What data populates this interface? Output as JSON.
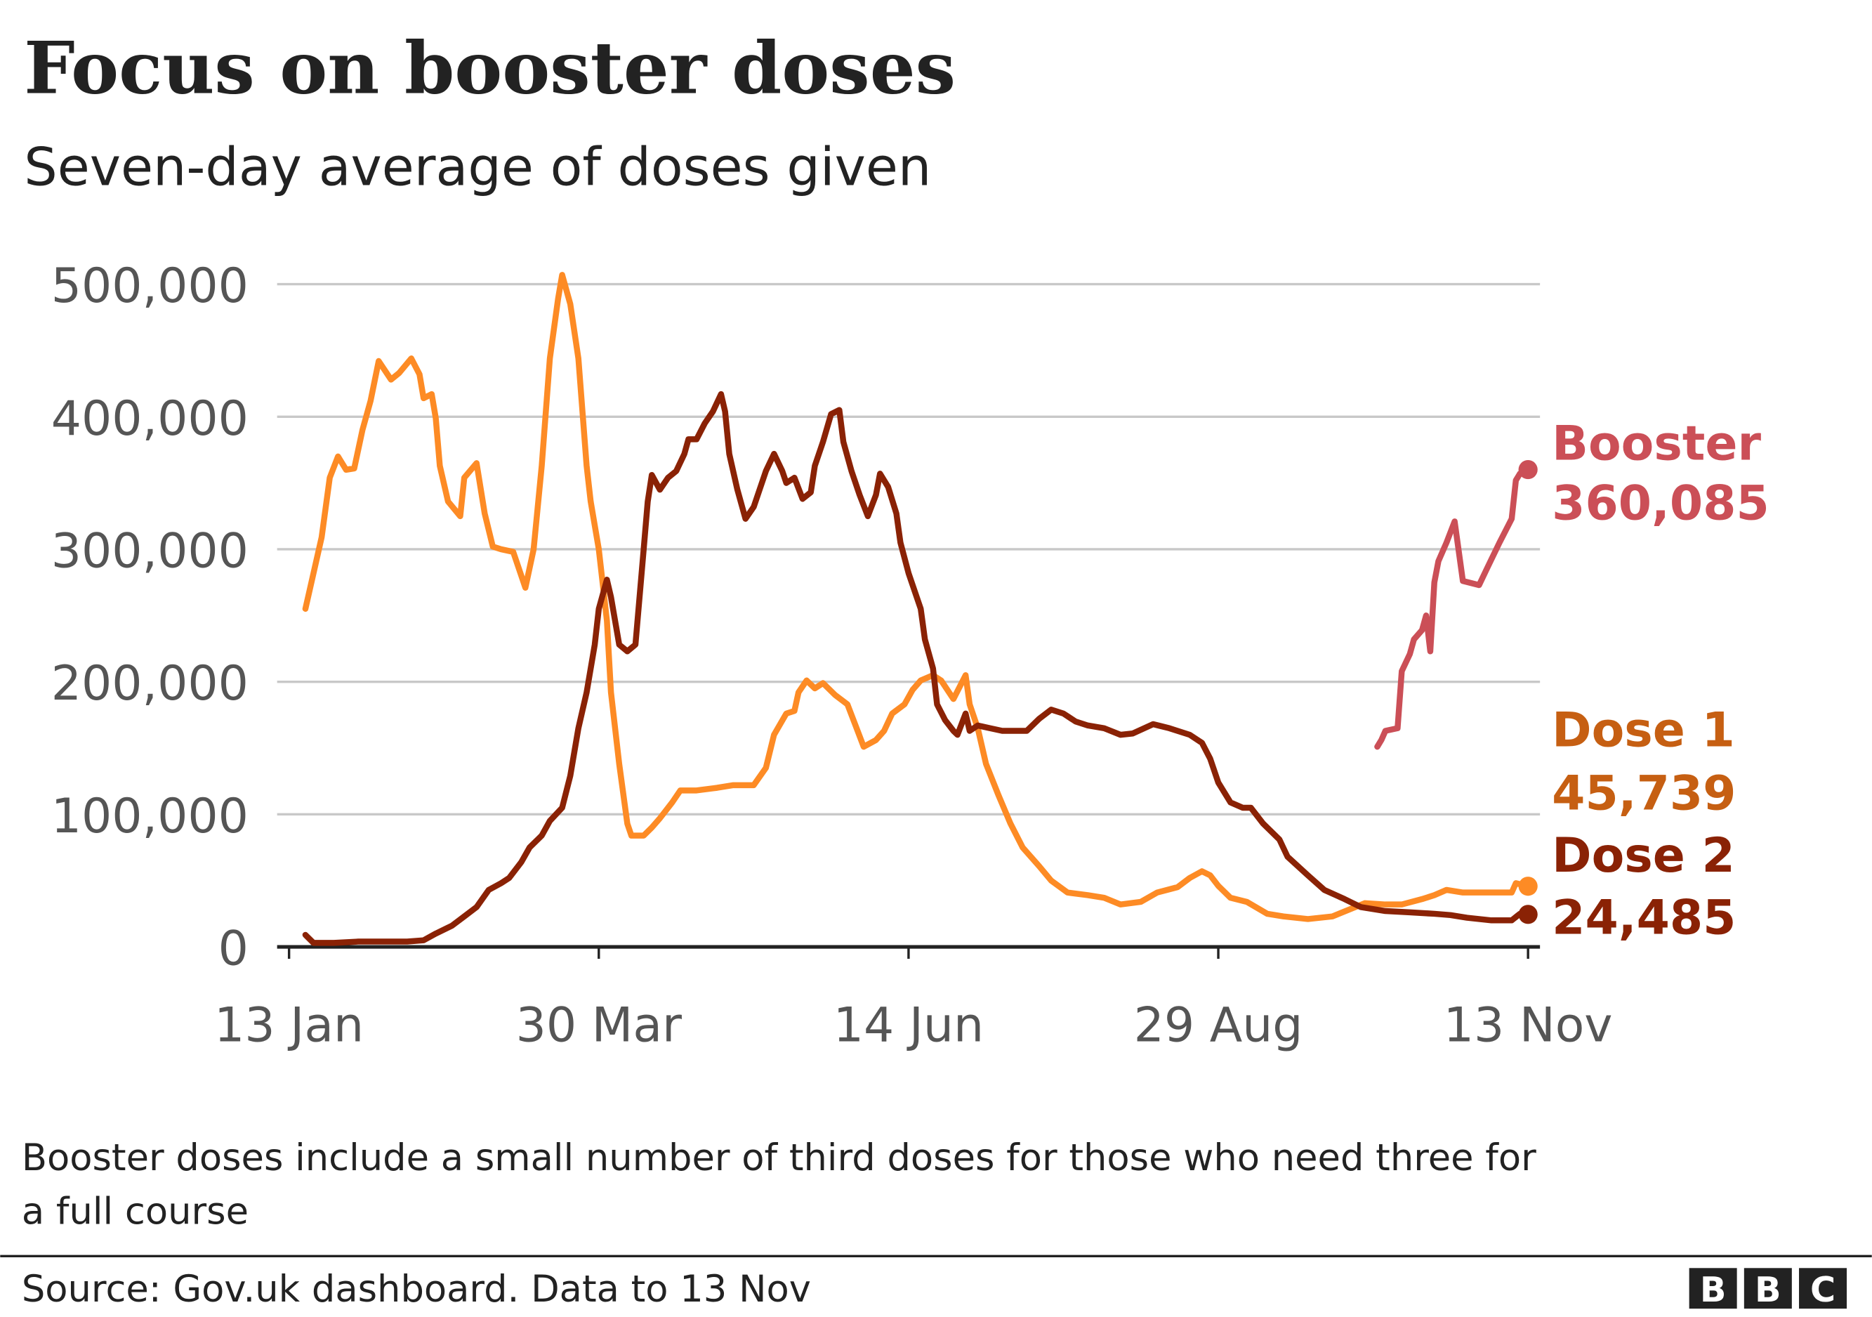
{
  "title": "Focus on booster doses",
  "subtitle": "Seven-day average of doses given",
  "footnote_line1": "Booster doses include a small number of third doses for those who need three for",
  "footnote_line2": "a full course",
  "source": "Source: Gov.uk dashboard. Data to 13 Nov",
  "logo": "BBC",
  "chart_data": {
    "type": "line",
    "title": "Focus on booster doses",
    "subtitle": "Seven-day average of doses given",
    "ylim": [
      0,
      500000
    ],
    "yticks": [
      0,
      100000,
      200000,
      300000,
      400000,
      500000
    ],
    "ytick_labels": [
      "0",
      "100,000",
      "200,000",
      "300,000",
      "400,000",
      "500,000"
    ],
    "xticks": [
      "13 Jan",
      "30 Mar",
      "14 Jun",
      "29 Aug",
      "13 Nov"
    ],
    "grid": "horizontal",
    "legend": "end-of-line labels, right",
    "series": [
      {
        "name": "Dose 1",
        "end_label": "45,739",
        "color": "#fd8b25",
        "label_color": "#c65f12",
        "points": [
          [
            "17 Jan",
            255000
          ],
          [
            "19 Jan",
            282000
          ],
          [
            "21 Jan",
            309000
          ],
          [
            "23 Jan",
            354000
          ],
          [
            "25 Jan",
            370000
          ],
          [
            "27 Jan",
            360000
          ],
          [
            "29 Jan",
            361000
          ],
          [
            "31 Jan",
            390000
          ],
          [
            "2 Feb",
            412000
          ],
          [
            "4 Feb",
            442000
          ],
          [
            "7 Feb",
            428000
          ],
          [
            "9 Feb",
            433000
          ],
          [
            "12 Feb",
            444000
          ],
          [
            "14 Feb",
            432000
          ],
          [
            "15 Feb",
            414000
          ],
          [
            "17 Feb",
            417000
          ],
          [
            "18 Feb",
            399000
          ],
          [
            "19 Feb",
            363000
          ],
          [
            "21 Feb",
            336000
          ],
          [
            "24 Feb",
            325000
          ],
          [
            "25 Feb",
            354000
          ],
          [
            "28 Feb",
            365000
          ],
          [
            "2 Mar",
            327000
          ],
          [
            "4 Mar",
            302000
          ],
          [
            "6 Mar",
            300000
          ],
          [
            "9 Mar",
            298000
          ],
          [
            "12 Mar",
            271000
          ],
          [
            "14 Mar",
            300000
          ],
          [
            "16 Mar",
            363000
          ],
          [
            "18 Mar",
            444000
          ],
          [
            "20 Mar",
            489000
          ],
          [
            "21 Mar",
            507000
          ],
          [
            "23 Mar",
            485000
          ],
          [
            "25 Mar",
            444000
          ],
          [
            "27 Mar",
            363000
          ],
          [
            "28 Mar",
            336000
          ],
          [
            "30 Mar",
            300000
          ],
          [
            "1 Apr",
            246000
          ],
          [
            "2 Apr",
            192000
          ],
          [
            "4 Apr",
            138000
          ],
          [
            "6 Apr",
            93000
          ],
          [
            "7 Apr",
            84000
          ],
          [
            "10 Apr",
            84000
          ],
          [
            "12 Apr",
            90000
          ],
          [
            "14 Apr",
            97000
          ],
          [
            "17 Apr",
            109000
          ],
          [
            "19 Apr",
            118000
          ],
          [
            "23 Apr",
            118000
          ],
          [
            "28 Apr",
            120000
          ],
          [
            "2 May",
            122000
          ],
          [
            "7 May",
            122000
          ],
          [
            "10 May",
            135000
          ],
          [
            "12 May",
            160000
          ],
          [
            "15 May",
            176000
          ],
          [
            "17 May",
            178000
          ],
          [
            "18 May",
            192000
          ],
          [
            "20 May",
            201000
          ],
          [
            "22 May",
            195000
          ],
          [
            "24 May",
            199000
          ],
          [
            "27 May",
            190000
          ],
          [
            "30 May",
            183000
          ],
          [
            "1 Jun",
            167000
          ],
          [
            "3 Jun",
            151000
          ],
          [
            "6 Jun",
            156000
          ],
          [
            "8 Jun",
            163000
          ],
          [
            "10 Jun",
            176000
          ],
          [
            "13 Jun",
            183000
          ],
          [
            "15 Jun",
            194000
          ],
          [
            "17 Jun",
            201000
          ],
          [
            "20 Jun",
            205000
          ],
          [
            "22 Jun",
            201000
          ],
          [
            "25 Jun",
            187000
          ],
          [
            "28 Jun",
            205000
          ],
          [
            "29 Jun",
            183000
          ],
          [
            "1 Jul",
            165000
          ],
          [
            "3 Jul",
            138000
          ],
          [
            "6 Jul",
            115000
          ],
          [
            "9 Jul",
            93000
          ],
          [
            "12 Jul",
            75000
          ],
          [
            "16 Jul",
            61000
          ],
          [
            "19 Jul",
            50000
          ],
          [
            "23 Jul",
            41000
          ],
          [
            "28 Jul",
            39000
          ],
          [
            "1 Aug",
            37000
          ],
          [
            "5 Aug",
            32000
          ],
          [
            "10 Aug",
            34000
          ],
          [
            "14 Aug",
            41000
          ],
          [
            "19 Aug",
            45000
          ],
          [
            "22 Aug",
            52000
          ],
          [
            "25 Aug",
            57000
          ],
          [
            "27 Aug",
            54000
          ],
          [
            "29 Aug",
            46000
          ],
          [
            "1 Sep",
            37000
          ],
          [
            "5 Sep",
            34000
          ],
          [
            "10 Sep",
            25000
          ],
          [
            "14 Sep",
            23000
          ],
          [
            "20 Sep",
            21000
          ],
          [
            "26 Sep",
            23000
          ],
          [
            "30 Sep",
            28000
          ],
          [
            "4 Oct",
            33000
          ],
          [
            "9 Oct",
            32000
          ],
          [
            "13 Oct",
            32000
          ],
          [
            "18 Oct",
            36000
          ],
          [
            "21 Oct",
            39000
          ],
          [
            "24 Oct",
            43000
          ],
          [
            "28 Oct",
            41000
          ],
          [
            "1 Nov",
            41000
          ],
          [
            "7 Nov",
            41000
          ],
          [
            "9 Nov",
            41000
          ],
          [
            "10 Nov",
            48000
          ],
          [
            "13 Nov",
            45739
          ]
        ]
      },
      {
        "name": "Dose 2",
        "end_label": "24,485",
        "color": "#8a2205",
        "label_color": "#8a2205",
        "points": [
          [
            "17 Jan",
            9000
          ],
          [
            "19 Jan",
            3000
          ],
          [
            "24 Jan",
            3000
          ],
          [
            "30 Jan",
            4000
          ],
          [
            "5 Feb",
            4000
          ],
          [
            "11 Feb",
            4000
          ],
          [
            "15 Feb",
            5000
          ],
          [
            "18 Feb",
            10000
          ],
          [
            "22 Feb",
            16000
          ],
          [
            "25 Feb",
            23000
          ],
          [
            "28 Feb",
            30000
          ],
          [
            "3 Mar",
            43000
          ],
          [
            "6 Mar",
            48000
          ],
          [
            "8 Mar",
            52000
          ],
          [
            "11 Mar",
            64000
          ],
          [
            "13 Mar",
            75000
          ],
          [
            "16 Mar",
            84000
          ],
          [
            "18 Mar",
            95000
          ],
          [
            "21 Mar",
            105000
          ],
          [
            "23 Mar",
            129000
          ],
          [
            "25 Mar",
            165000
          ],
          [
            "27 Mar",
            192000
          ],
          [
            "29 Mar",
            228000
          ],
          [
            "30 Mar",
            255000
          ],
          [
            "1 Apr",
            277000
          ],
          [
            "2 Apr",
            264000
          ],
          [
            "4 Apr",
            228000
          ],
          [
            "6 Apr",
            223000
          ],
          [
            "8 Apr",
            228000
          ],
          [
            "10 Apr",
            300000
          ],
          [
            "11 Apr",
            336000
          ],
          [
            "12 Apr",
            356000
          ],
          [
            "14 Apr",
            345000
          ],
          [
            "16 Apr",
            354000
          ],
          [
            "18 Apr",
            359000
          ],
          [
            "20 Apr",
            372000
          ],
          [
            "21 Apr",
            383000
          ],
          [
            "23 Apr",
            383000
          ],
          [
            "25 Apr",
            395000
          ],
          [
            "27 Apr",
            404000
          ],
          [
            "29 Apr",
            417000
          ],
          [
            "30 Apr",
            404000
          ],
          [
            "1 May",
            372000
          ],
          [
            "3 May",
            345000
          ],
          [
            "5 May",
            323000
          ],
          [
            "7 May",
            332000
          ],
          [
            "8 May",
            341000
          ],
          [
            "10 May",
            359000
          ],
          [
            "12 May",
            372000
          ],
          [
            "14 May",
            359000
          ],
          [
            "15 May",
            350000
          ],
          [
            "17 May",
            354000
          ],
          [
            "19 May",
            338000
          ],
          [
            "21 May",
            343000
          ],
          [
            "22 May",
            363000
          ],
          [
            "24 May",
            381000
          ],
          [
            "26 May",
            402000
          ],
          [
            "28 May",
            405000
          ],
          [
            "29 May",
            381000
          ],
          [
            "31 May",
            359000
          ],
          [
            "2 Jun",
            341000
          ],
          [
            "4 Jun",
            325000
          ],
          [
            "6 Jun",
            341000
          ],
          [
            "7 Jun",
            357000
          ],
          [
            "9 Jun",
            347000
          ],
          [
            "11 Jun",
            327000
          ],
          [
            "12 Jun",
            305000
          ],
          [
            "14 Jun",
            282000
          ],
          [
            "17 Jun",
            255000
          ],
          [
            "18 Jun",
            232000
          ],
          [
            "20 Jun",
            210000
          ],
          [
            "21 Jun",
            183000
          ],
          [
            "23 Jun",
            171000
          ],
          [
            "25 Jun",
            163000
          ],
          [
            "26 Jun",
            160000
          ],
          [
            "28 Jun",
            176000
          ],
          [
            "29 Jun",
            163000
          ],
          [
            "1 Jul",
            167000
          ],
          [
            "4 Jul",
            165000
          ],
          [
            "7 Jul",
            163000
          ],
          [
            "10 Jul",
            163000
          ],
          [
            "13 Jul",
            163000
          ],
          [
            "16 Jul",
            172000
          ],
          [
            "19 Jul",
            179000
          ],
          [
            "22 Jul",
            176000
          ],
          [
            "25 Jul",
            170000
          ],
          [
            "28 Jul",
            167000
          ],
          [
            "1 Aug",
            165000
          ],
          [
            "5 Aug",
            160000
          ],
          [
            "8 Aug",
            161000
          ],
          [
            "13 Aug",
            168000
          ],
          [
            "17 Aug",
            165000
          ],
          [
            "22 Aug",
            160000
          ],
          [
            "25 Aug",
            154000
          ],
          [
            "27 Aug",
            142000
          ],
          [
            "29 Aug",
            124000
          ],
          [
            "1 Sep",
            109000
          ],
          [
            "4 Sep",
            105000
          ],
          [
            "6 Sep",
            105000
          ],
          [
            "9 Sep",
            93000
          ],
          [
            "13 Sep",
            81000
          ],
          [
            "15 Sep",
            68000
          ],
          [
            "20 Sep",
            54000
          ],
          [
            "24 Sep",
            43000
          ],
          [
            "29 Sep",
            36000
          ],
          [
            "3 Oct",
            30000
          ],
          [
            "9 Oct",
            27000
          ],
          [
            "15 Oct",
            26000
          ],
          [
            "21 Oct",
            25000
          ],
          [
            "25 Oct",
            24000
          ],
          [
            "29 Oct",
            22000
          ],
          [
            "4 Nov",
            20000
          ],
          [
            "9 Nov",
            20000
          ],
          [
            "11 Nov",
            25000
          ],
          [
            "13 Nov",
            24485
          ]
        ]
      },
      {
        "name": "Booster",
        "end_label": "360,085",
        "color": "#cb4f57",
        "label_color": "#cb4f57",
        "points": [
          [
            "7 Oct",
            151000
          ],
          [
            "8 Oct",
            156000
          ],
          [
            "9 Oct",
            163000
          ],
          [
            "12 Oct",
            165000
          ],
          [
            "13 Oct",
            208000
          ],
          [
            "15 Oct",
            221000
          ],
          [
            "16 Oct",
            232000
          ],
          [
            "18 Oct",
            239000
          ],
          [
            "19 Oct",
            250000
          ],
          [
            "20 Oct",
            223000
          ],
          [
            "21 Oct",
            275000
          ],
          [
            "22 Oct",
            291000
          ],
          [
            "24 Oct",
            305000
          ],
          [
            "26 Oct",
            321000
          ],
          [
            "28 Oct",
            276000
          ],
          [
            "1 Nov",
            273000
          ],
          [
            "3 Nov",
            286000
          ],
          [
            "6 Nov",
            305000
          ],
          [
            "9 Nov",
            323000
          ],
          [
            "10 Nov",
            352000
          ],
          [
            "11 Nov",
            357000
          ],
          [
            "13 Nov",
            360085
          ]
        ]
      }
    ]
  }
}
